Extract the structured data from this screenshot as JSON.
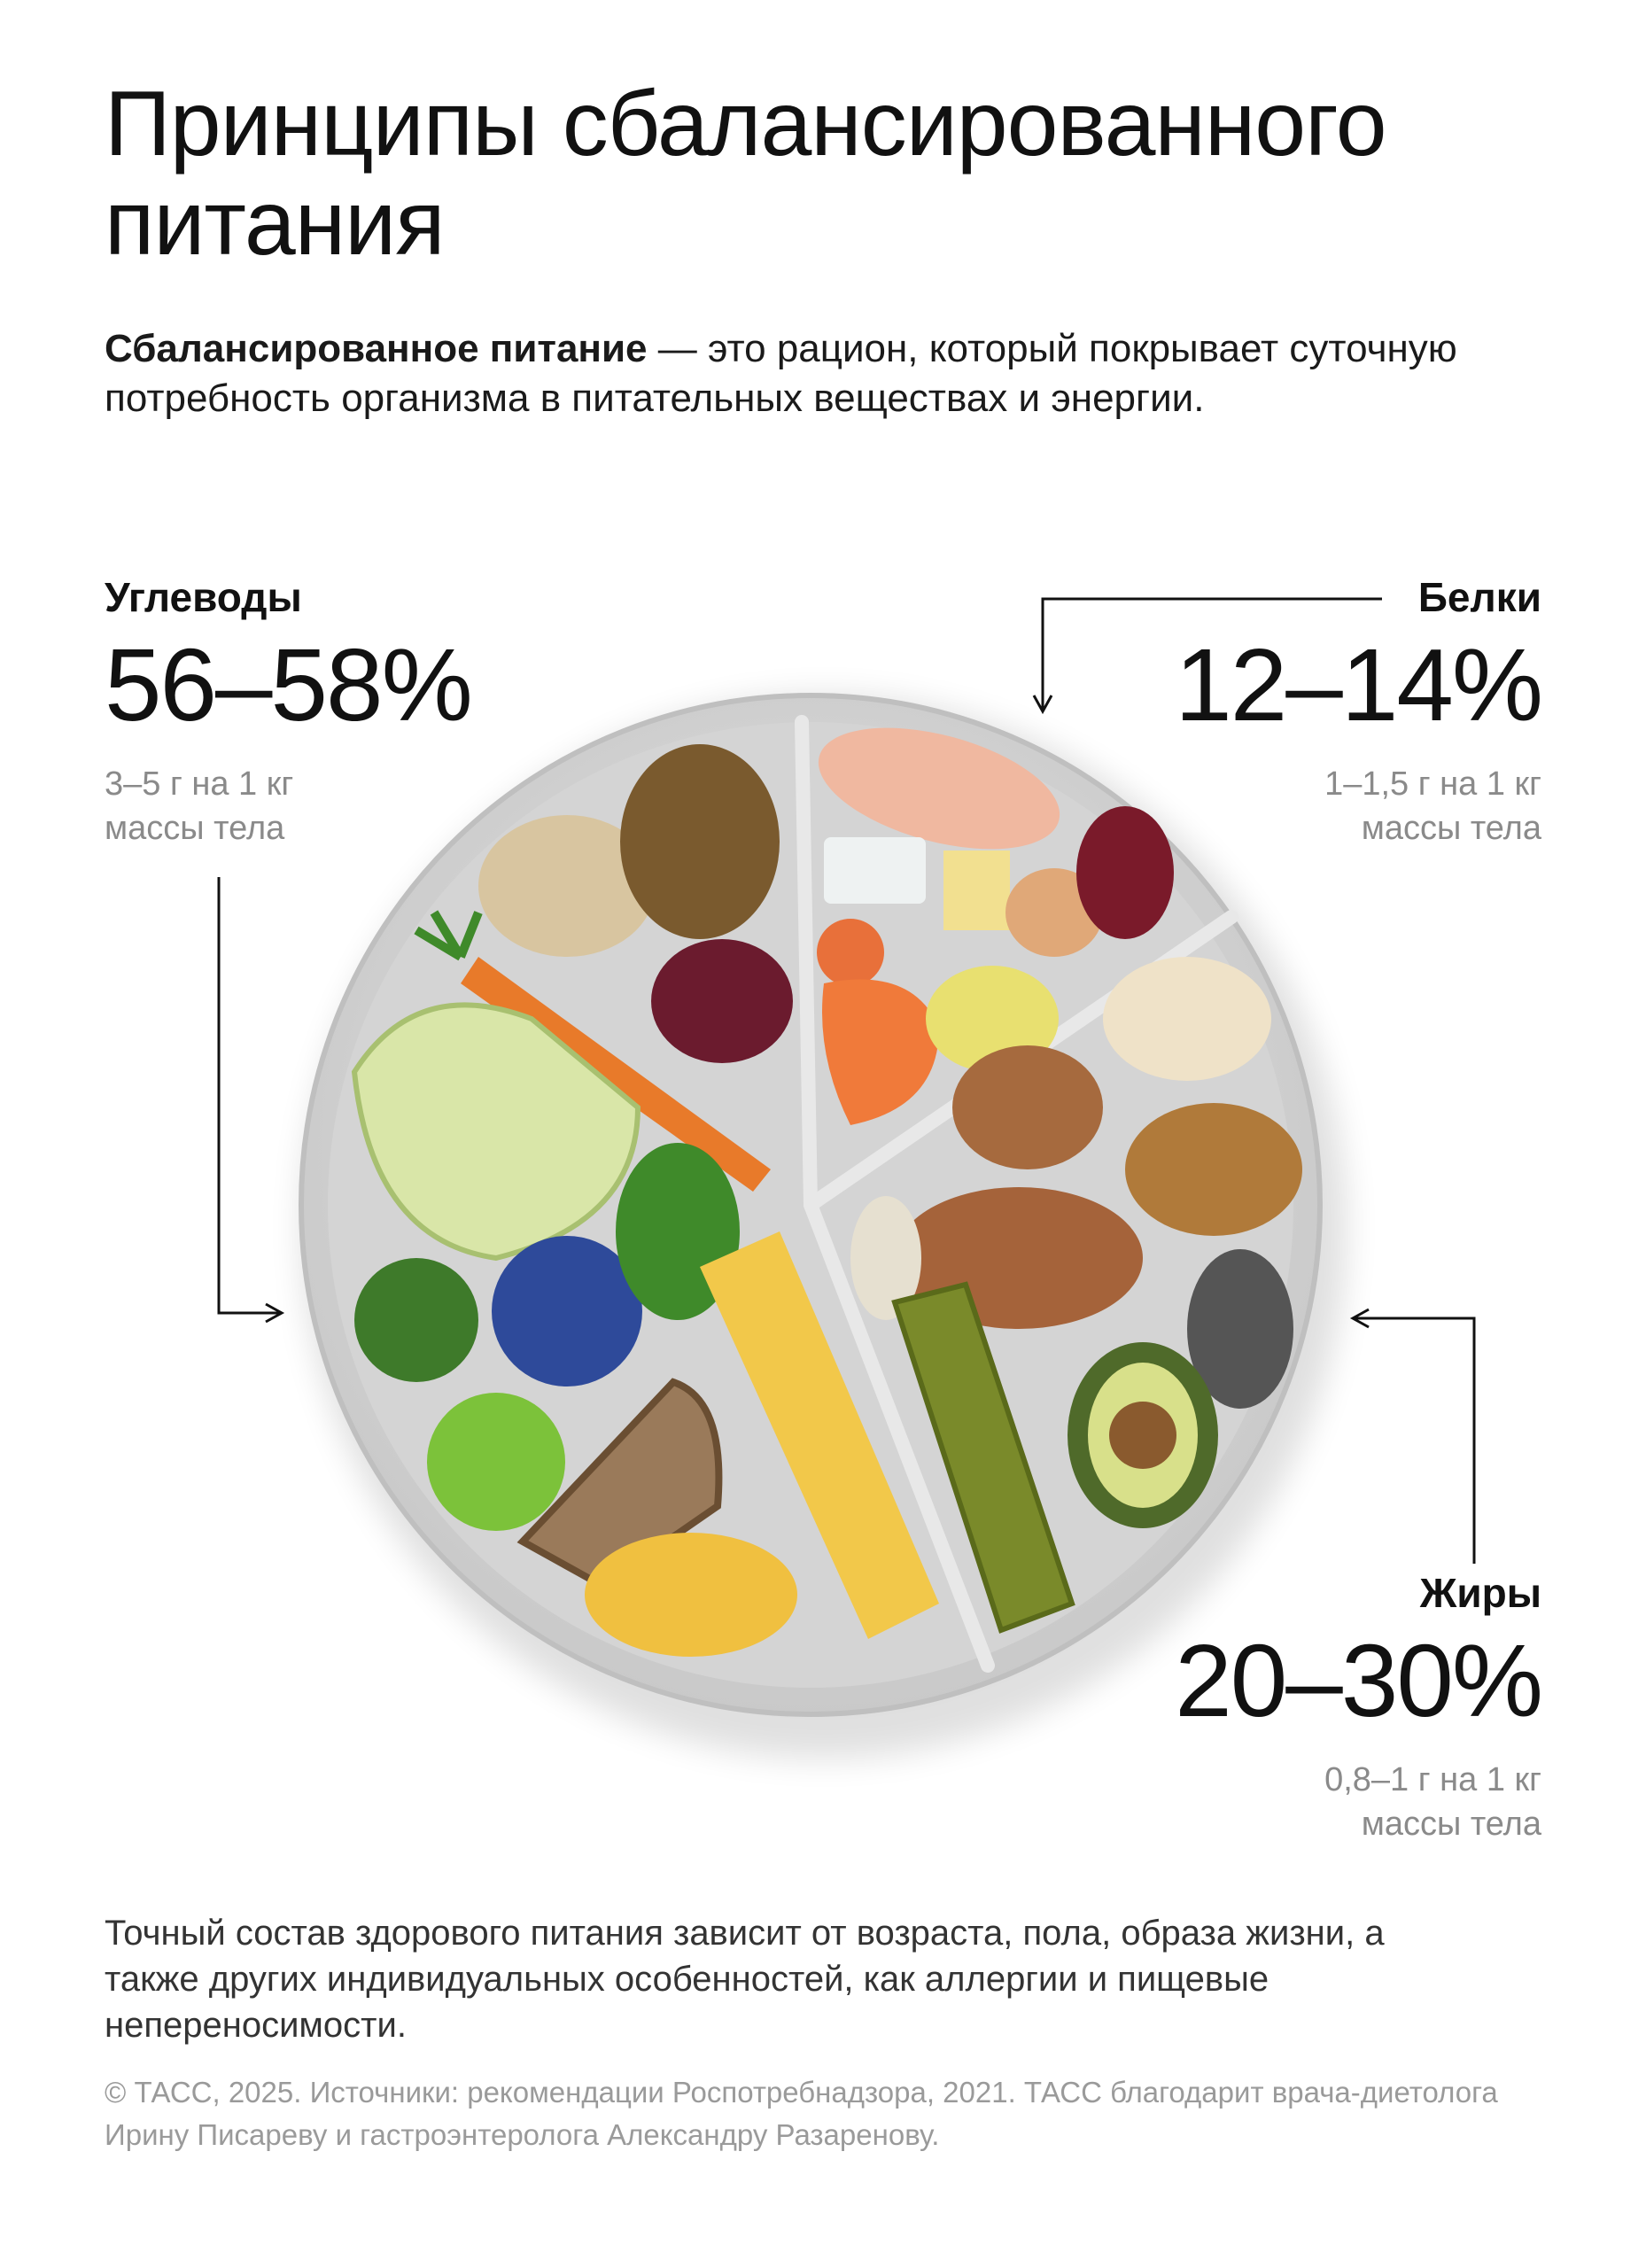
{
  "title": "Принципы сбалансированного питания",
  "intro": {
    "term": "Сбалансированное питание",
    "definition": " — это рацион, который покрывает суточную потребность организма в питательных веществах и энергии."
  },
  "macros": {
    "carbs": {
      "label": "Углеводы",
      "percent": "56–58%",
      "note_line1": "3–5 г на 1 кг",
      "note_line2": "массы тела"
    },
    "proteins": {
      "label": "Белки",
      "percent": "12–14%",
      "note_line1": "1–1,5 г на 1 кг",
      "note_line2": "массы тела"
    },
    "fats": {
      "label": "Жиры",
      "percent": "20–30%",
      "note_line1": "0,8–1 г на 1 кг",
      "note_line2": "массы тела"
    }
  },
  "footer_note": "Точный состав здорового питания зависит от возраста, пола, образа жизни, а также других индивидуальных особенностей, как аллергии и пищевые непереносимости.",
  "credits": "© ТАСС, 2025. Источники: рекомендации Роспотребнадзора, 2021. ТАСС благодарит врача-диетолога Ирину Писареву и гастроэнтеролога Александру Разаренову.",
  "colors": {
    "plate": "#d9d9d9",
    "plate_rim": "#c4c4c4",
    "text": "#111111",
    "note": "#8a8a8a"
  }
}
